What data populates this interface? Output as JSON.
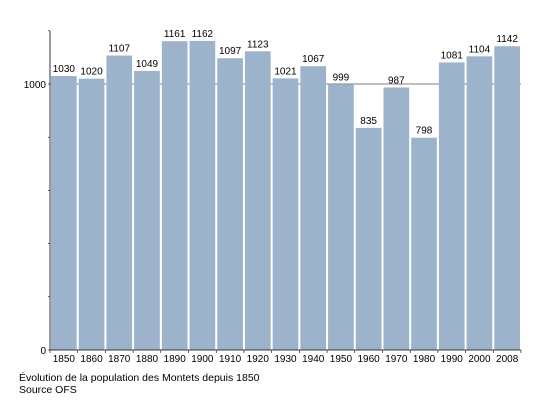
{
  "caption": {
    "line1": "Évolution de la population des Montets depuis 1850",
    "line2": "Source OFS"
  },
  "colors": {
    "bar": "#9cb3cb",
    "axis": "#000000",
    "gridline": "#000000"
  },
  "chart_data": {
    "type": "bar",
    "categories": [
      "1850",
      "1860",
      "1870",
      "1880",
      "1890",
      "1900",
      "1910",
      "1920",
      "1930",
      "1940",
      "1950",
      "1960",
      "1970",
      "1980",
      "1990",
      "2000",
      "2008"
    ],
    "values": [
      1030,
      1020,
      1107,
      1049,
      1161,
      1162,
      1097,
      1123,
      1021,
      1067,
      999,
      835,
      987,
      798,
      1081,
      1104,
      1142
    ],
    "title": "",
    "xlabel": "",
    "ylabel": "",
    "ylim": [
      0,
      1200
    ],
    "yticks": [
      0,
      1000
    ],
    "grid": "y-line-at-1000",
    "legend": "none",
    "data_labels": true
  }
}
